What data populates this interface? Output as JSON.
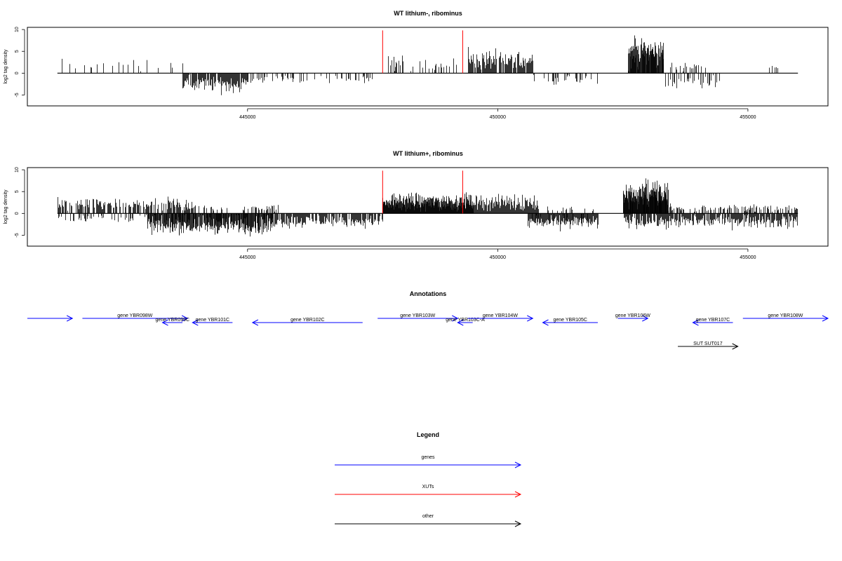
{
  "chart_data": [
    {
      "type": "bar",
      "title": "WT lithium-, ribominus",
      "xlabel": "",
      "ylabel": "log2 tag density",
      "xlim": [
        440600,
        456600
      ],
      "ylim": [
        -7.5,
        10.5
      ],
      "x_ticks": [
        445000,
        450000,
        455000
      ],
      "y_ticks": [
        -5,
        0,
        5,
        10
      ],
      "baseline_range": [
        441200,
        456000
      ],
      "markers": {
        "color": "#ff0000",
        "x": [
          447700,
          449300
        ]
      },
      "plus_segments": [
        {
          "from": 441200,
          "to": 443700,
          "density": 0.18,
          "mean": 2.0,
          "spread": 1.0
        },
        {
          "from": 447800,
          "to": 449300,
          "density": 0.35,
          "mean": 2.2,
          "spread": 1.2
        },
        {
          "from": 449400,
          "to": 450700,
          "density": 0.9,
          "mean": 3.0,
          "spread": 1.6
        },
        {
          "from": 452600,
          "to": 453300,
          "density": 1.8,
          "mean": 4.8,
          "spread": 2.4
        },
        {
          "from": 453300,
          "to": 454200,
          "density": 0.25,
          "mean": 1.4,
          "spread": 0.8
        },
        {
          "from": 455300,
          "to": 455700,
          "density": 0.1,
          "mean": 1.6,
          "spread": 0.4
        }
      ],
      "minus_segments": [
        {
          "from": 443700,
          "to": 445000,
          "density": 0.9,
          "mean": -2.5,
          "spread": 1.4
        },
        {
          "from": 445000,
          "to": 447500,
          "density": 0.25,
          "mean": -1.4,
          "spread": 0.8
        },
        {
          "from": 450700,
          "to": 452000,
          "density": 0.25,
          "mean": -1.6,
          "spread": 0.8
        },
        {
          "from": 453300,
          "to": 454500,
          "density": 0.4,
          "mean": -2.0,
          "spread": 1.0
        }
      ]
    },
    {
      "type": "bar",
      "title": "WT lithium+, ribominus",
      "xlabel": "",
      "ylabel": "log2 tag density",
      "xlim": [
        440600,
        456600
      ],
      "ylim": [
        -7.5,
        10.5
      ],
      "x_ticks": [
        445000,
        450000,
        455000
      ],
      "y_ticks": [
        -5,
        0,
        5,
        10
      ],
      "baseline_range": [
        441200,
        456000
      ],
      "markers": {
        "color": "#ff0000",
        "x": [
          447700,
          449300
        ]
      },
      "plus_segments": [
        {
          "from": 441200,
          "to": 443900,
          "density": 0.7,
          "mean": 2.0,
          "spread": 1.2
        },
        {
          "from": 443900,
          "to": 445600,
          "density": 0.3,
          "mean": 1.2,
          "spread": 0.6
        },
        {
          "from": 447700,
          "to": 449500,
          "density": 2.0,
          "mean": 2.6,
          "spread": 1.4
        },
        {
          "from": 449500,
          "to": 450800,
          "density": 1.0,
          "mean": 2.5,
          "spread": 1.3
        },
        {
          "from": 450800,
          "to": 452000,
          "density": 0.2,
          "mean": 1.0,
          "spread": 0.5
        },
        {
          "from": 452500,
          "to": 453400,
          "density": 2.2,
          "mean": 4.2,
          "spread": 2.2
        },
        {
          "from": 453400,
          "to": 456000,
          "density": 0.45,
          "mean": 1.2,
          "spread": 0.7
        }
      ],
      "minus_segments": [
        {
          "from": 441200,
          "to": 443000,
          "density": 0.25,
          "mean": -1.2,
          "spread": 0.6
        },
        {
          "from": 443000,
          "to": 445500,
          "density": 1.6,
          "mean": -2.6,
          "spread": 1.5
        },
        {
          "from": 445500,
          "to": 447700,
          "density": 0.8,
          "mean": -1.8,
          "spread": 1.0
        },
        {
          "from": 450600,
          "to": 452000,
          "density": 1.2,
          "mean": -2.0,
          "spread": 1.1
        },
        {
          "from": 452500,
          "to": 456000,
          "density": 0.9,
          "mean": -1.8,
          "spread": 1.1
        }
      ]
    }
  ],
  "annotations": {
    "title": "Annotations",
    "xlim": [
      440600,
      456600
    ],
    "features": [
      {
        "label": "",
        "start": 440600,
        "end": 441500,
        "strand": "+",
        "row": 0,
        "color": "#0000ff"
      },
      {
        "label": "gene YBR098W",
        "start": 441700,
        "end": 443800,
        "strand": "+",
        "row": 0,
        "color": "#0000ff"
      },
      {
        "label": "gene YBR099C",
        "start": 443300,
        "end": 443700,
        "strand": "-",
        "row": 1,
        "color": "#0000ff"
      },
      {
        "label": "gene YBR101C",
        "start": 443900,
        "end": 444700,
        "strand": "-",
        "row": 1,
        "color": "#0000ff"
      },
      {
        "label": "gene YBR102C",
        "start": 445100,
        "end": 447300,
        "strand": "-",
        "row": 1,
        "color": "#0000ff"
      },
      {
        "label": "gene YBR103W",
        "start": 447600,
        "end": 449200,
        "strand": "+",
        "row": 0,
        "color": "#0000ff"
      },
      {
        "label": "gene YBR103C-A",
        "start": 449200,
        "end": 449500,
        "strand": "-",
        "row": 1,
        "color": "#0000ff"
      },
      {
        "label": "gene YBR104W",
        "start": 449400,
        "end": 450700,
        "strand": "+",
        "row": 0,
        "color": "#0000ff"
      },
      {
        "label": "gene YBR105C",
        "start": 450900,
        "end": 452000,
        "strand": "-",
        "row": 1,
        "color": "#0000ff"
      },
      {
        "label": "gene YBR106W",
        "start": 452400,
        "end": 453000,
        "strand": "+",
        "row": 0,
        "color": "#0000ff"
      },
      {
        "label": "gene YBR107C",
        "start": 453900,
        "end": 454700,
        "strand": "-",
        "row": 1,
        "color": "#0000ff"
      },
      {
        "label": "gene YBR108W",
        "start": 454900,
        "end": 456600,
        "strand": "+",
        "row": 0,
        "color": "#0000ff"
      },
      {
        "label": "SUT SUT017",
        "start": 453600,
        "end": 454800,
        "strand": "+",
        "row": 3,
        "color": "#000000"
      }
    ]
  },
  "legend": {
    "title": "Legend",
    "items": [
      {
        "label": "genes",
        "color": "#0000ff"
      },
      {
        "label": "XUTs",
        "color": "#ff0000"
      },
      {
        "label": "other",
        "color": "#000000"
      }
    ]
  }
}
